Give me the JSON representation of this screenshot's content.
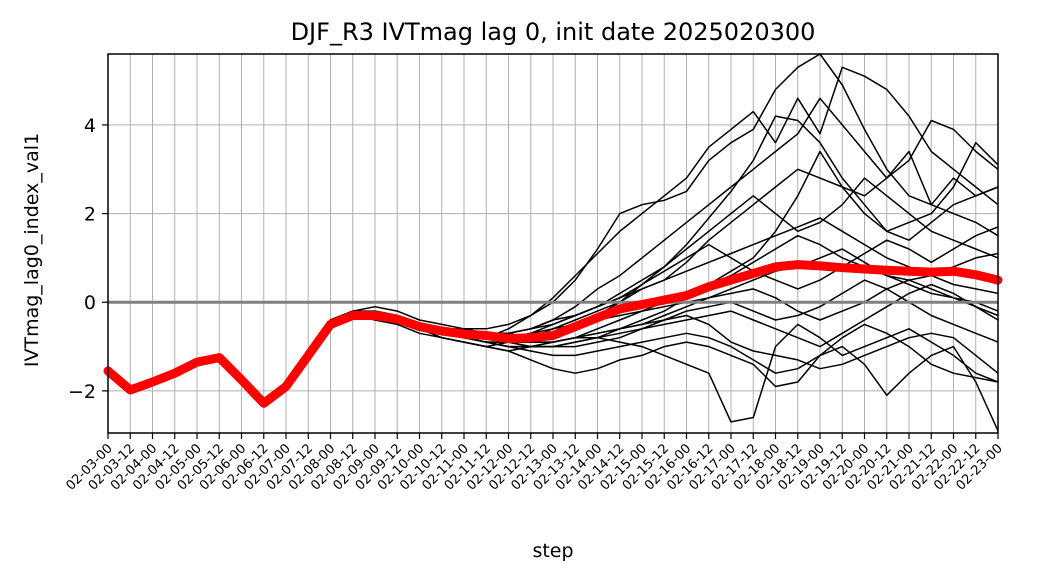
{
  "chart_data": {
    "type": "line",
    "title": "DJF_R3 IVTmag lag 0, init date 2025020300",
    "xlabel": "step",
    "ylabel": "IVTmag_lag0_index_val1",
    "categories": [
      "02-03-00",
      "02-03-12",
      "02-04-00",
      "02-04-12",
      "02-05-00",
      "02-05-12",
      "02-06-00",
      "02-06-12",
      "02-07-00",
      "02-07-12",
      "02-08-00",
      "02-08-12",
      "02-09-00",
      "02-09-12",
      "02-10-00",
      "02-10-12",
      "02-11-00",
      "02-11-12",
      "02-12-00",
      "02-12-12",
      "02-13-00",
      "02-13-12",
      "02-14-00",
      "02-14-12",
      "02-15-00",
      "02-15-12",
      "02-16-00",
      "02-16-12",
      "02-17-00",
      "02-17-12",
      "02-18-00",
      "02-18-12",
      "02-19-00",
      "02-19-12",
      "02-20-00",
      "02-20-12",
      "02-21-00",
      "02-21-12",
      "02-22-00",
      "02-22-12",
      "02-23-00"
    ],
    "yticks": [
      -2,
      0,
      2,
      4
    ],
    "ylim": [
      -2.95,
      5.6
    ],
    "grid": true,
    "reference_line": {
      "y": 0,
      "color": "#808080"
    },
    "colors": {
      "members": "#000000",
      "mean": "#ff0000",
      "grid": "#b0b0b0"
    },
    "series": [
      {
        "role": "ensemble-mean",
        "values": [
          -1.55,
          -1.98,
          -1.8,
          -1.6,
          -1.35,
          -1.25,
          -1.75,
          -2.28,
          -1.9,
          -1.2,
          -0.5,
          -0.3,
          -0.3,
          -0.38,
          -0.55,
          -0.65,
          -0.72,
          -0.75,
          -0.82,
          -0.8,
          -0.75,
          -0.55,
          -0.35,
          -0.15,
          -0.05,
          0.05,
          0.15,
          0.35,
          0.5,
          0.65,
          0.8,
          0.85,
          0.82,
          0.78,
          0.75,
          0.72,
          0.7,
          0.68,
          0.7,
          0.62,
          0.5
        ]
      },
      {
        "role": "member",
        "values": [
          -1.55,
          -1.95,
          -1.82,
          -1.58,
          -1.32,
          -1.2,
          -1.7,
          -2.3,
          -1.9,
          -1.1,
          -0.4,
          -0.3,
          -0.2,
          -0.3,
          -0.5,
          -0.6,
          -0.6,
          -0.7,
          -0.7,
          -0.6,
          -0.4,
          -0.1,
          0.3,
          0.6,
          1.0,
          1.4,
          1.8,
          2.2,
          2.6,
          3.0,
          3.4,
          3.8,
          4.6,
          4.0,
          3.4,
          2.8,
          3.4,
          2.2,
          2.8,
          2.4,
          2.6
        ]
      },
      {
        "role": "member",
        "values": [
          -1.55,
          -1.95,
          -1.82,
          -1.58,
          -1.32,
          -1.2,
          -1.7,
          -2.3,
          -1.9,
          -1.1,
          -0.4,
          -0.2,
          -0.1,
          -0.2,
          -0.4,
          -0.5,
          -0.6,
          -0.6,
          -0.5,
          -0.3,
          0.0,
          0.5,
          1.2,
          2.0,
          2.2,
          2.3,
          2.5,
          3.2,
          3.6,
          3.9,
          4.8,
          5.3,
          5.6,
          4.9,
          3.9,
          3.0,
          2.4,
          2.2,
          2.0,
          1.8,
          1.5
        ]
      },
      {
        "role": "member",
        "values": [
          -1.55,
          -1.95,
          -1.82,
          -1.58,
          -1.32,
          -1.2,
          -1.7,
          -2.3,
          -1.9,
          -1.1,
          -0.4,
          -0.3,
          -0.3,
          -0.4,
          -0.6,
          -0.7,
          -0.8,
          -0.8,
          -0.6,
          -0.3,
          0.1,
          0.6,
          1.1,
          1.6,
          2.0,
          2.4,
          2.8,
          3.5,
          3.9,
          4.3,
          3.6,
          4.6,
          3.8,
          5.3,
          5.1,
          4.8,
          4.2,
          3.4,
          3.0,
          2.6,
          2.2
        ]
      },
      {
        "role": "member",
        "values": [
          -1.55,
          -1.95,
          -1.82,
          -1.58,
          -1.32,
          -1.2,
          -1.7,
          -2.3,
          -1.9,
          -1.1,
          -0.4,
          -0.3,
          -0.4,
          -0.5,
          -0.7,
          -0.8,
          -0.9,
          -1.0,
          -0.9,
          -0.8,
          -0.6,
          -0.4,
          -0.2,
          0.0,
          0.3,
          0.5,
          0.9,
          1.4,
          1.8,
          2.2,
          2.6,
          3.0,
          2.8,
          2.6,
          2.4,
          2.8,
          3.2,
          4.1,
          3.9,
          3.4,
          3.0
        ]
      },
      {
        "role": "member",
        "values": [
          -1.55,
          -1.95,
          -1.82,
          -1.58,
          -1.32,
          -1.2,
          -1.7,
          -2.3,
          -1.9,
          -1.1,
          -0.4,
          -0.2,
          -0.2,
          -0.3,
          -0.5,
          -0.6,
          -0.6,
          -0.7,
          -0.7,
          -0.8,
          -0.7,
          -0.5,
          -0.3,
          0.0,
          0.4,
          0.8,
          1.3,
          1.9,
          2.5,
          3.2,
          4.2,
          4.1,
          3.6,
          2.8,
          2.2,
          1.6,
          1.8,
          2.0,
          2.6,
          3.6,
          3.1
        ]
      },
      {
        "role": "member",
        "values": [
          -1.55,
          -1.95,
          -1.82,
          -1.58,
          -1.32,
          -1.2,
          -1.7,
          -2.3,
          -1.9,
          -1.1,
          -0.4,
          -0.3,
          -0.3,
          -0.4,
          -0.6,
          -0.7,
          -0.8,
          -0.9,
          -1.0,
          -1.0,
          -1.0,
          -0.9,
          -0.8,
          -0.6,
          -0.4,
          -0.2,
          0.1,
          0.4,
          0.7,
          1.0,
          1.6,
          2.4,
          3.4,
          2.6,
          2.0,
          1.6,
          1.4,
          1.8,
          2.2,
          2.4,
          2.6
        ]
      },
      {
        "role": "member",
        "values": [
          -1.55,
          -1.95,
          -1.82,
          -1.58,
          -1.32,
          -1.2,
          -1.7,
          -2.3,
          -1.9,
          -1.1,
          -0.4,
          -0.3,
          -0.3,
          -0.4,
          -0.5,
          -0.6,
          -0.7,
          -0.7,
          -0.7,
          -0.6,
          -0.4,
          -0.3,
          -0.1,
          0.2,
          0.5,
          0.8,
          1.2,
          1.6,
          2.0,
          2.4,
          2.0,
          1.6,
          1.8,
          2.2,
          2.8,
          2.4,
          2.0,
          1.6,
          1.4,
          1.2,
          1.0
        ]
      },
      {
        "role": "member",
        "values": [
          -1.55,
          -1.95,
          -1.82,
          -1.58,
          -1.32,
          -1.2,
          -1.7,
          -2.3,
          -1.9,
          -1.1,
          -0.4,
          -0.3,
          -0.3,
          -0.4,
          -0.6,
          -0.7,
          -0.8,
          -0.8,
          -0.9,
          -0.9,
          -0.9,
          -0.8,
          -0.7,
          -0.6,
          -0.5,
          -0.4,
          -0.3,
          -0.5,
          -0.9,
          -1.1,
          -1.2,
          -1.3,
          -1.5,
          -1.4,
          -1.2,
          -1.0,
          -0.8,
          -0.7,
          -0.8,
          -1.2,
          -1.6
        ]
      },
      {
        "role": "member",
        "values": [
          -1.55,
          -1.95,
          -1.82,
          -1.58,
          -1.32,
          -1.2,
          -1.7,
          -2.3,
          -1.9,
          -1.1,
          -0.4,
          -0.3,
          -0.3,
          -0.4,
          -0.6,
          -0.8,
          -0.9,
          -1.0,
          -1.1,
          -1.0,
          -0.9,
          -0.8,
          -0.8,
          -0.9,
          -1.0,
          -1.2,
          -1.4,
          -1.6,
          -2.7,
          -2.6,
          -1.0,
          -0.5,
          -0.8,
          -1.2,
          -1.0,
          -0.8,
          -0.6,
          -0.9,
          -1.2,
          -1.6,
          -1.8
        ]
      },
      {
        "role": "member",
        "values": [
          -1.55,
          -1.95,
          -1.82,
          -1.58,
          -1.32,
          -1.2,
          -1.7,
          -2.3,
          -1.9,
          -1.1,
          -0.4,
          -0.3,
          -0.3,
          -0.4,
          -0.5,
          -0.7,
          -0.8,
          -0.9,
          -1.0,
          -1.1,
          -1.2,
          -1.2,
          -1.1,
          -1.0,
          -0.9,
          -0.8,
          -0.7,
          -0.8,
          -1.0,
          -1.3,
          -1.6,
          -1.5,
          -1.2,
          -1.0,
          -1.4,
          -2.1,
          -1.6,
          -1.2,
          -1.0,
          -1.8,
          -2.9
        ]
      },
      {
        "role": "member",
        "values": [
          -1.55,
          -1.95,
          -1.82,
          -1.58,
          -1.32,
          -1.2,
          -1.7,
          -2.3,
          -1.9,
          -1.1,
          -0.4,
          -0.3,
          -0.3,
          -0.4,
          -0.6,
          -0.8,
          -0.9,
          -1.0,
          -1.1,
          -1.3,
          -1.5,
          -1.6,
          -1.5,
          -1.3,
          -1.2,
          -1.0,
          -0.9,
          -1.0,
          -1.2,
          -1.4,
          -1.9,
          -1.8,
          -1.2,
          -0.8,
          -0.5,
          -0.7,
          -1.0,
          -1.4,
          -1.6,
          -1.7,
          -1.8
        ]
      },
      {
        "role": "member",
        "values": [
          -1.55,
          -1.95,
          -1.82,
          -1.58,
          -1.32,
          -1.2,
          -1.7,
          -2.3,
          -1.9,
          -1.1,
          -0.4,
          -0.3,
          -0.3,
          -0.4,
          -0.6,
          -0.7,
          -0.8,
          -0.8,
          -0.9,
          -0.9,
          -0.9,
          -0.8,
          -0.7,
          -0.6,
          -0.5,
          -0.3,
          -0.1,
          0.1,
          0.3,
          0.5,
          0.7,
          0.8,
          1.0,
          1.2,
          0.9,
          0.6,
          0.4,
          0.2,
          0.1,
          0.0,
          -0.2
        ]
      },
      {
        "role": "member",
        "values": [
          -1.55,
          -1.95,
          -1.82,
          -1.58,
          -1.32,
          -1.2,
          -1.7,
          -2.3,
          -1.9,
          -1.1,
          -0.4,
          -0.3,
          -0.3,
          -0.4,
          -0.6,
          -0.7,
          -0.8,
          -0.9,
          -0.9,
          -1.0,
          -0.9,
          -0.8,
          -0.6,
          -0.4,
          -0.2,
          0.0,
          0.2,
          0.4,
          0.6,
          0.9,
          1.2,
          1.5,
          1.3,
          1.0,
          0.8,
          0.6,
          0.5,
          0.6,
          0.8,
          1.0,
          1.1
        ]
      },
      {
        "role": "member",
        "values": [
          -1.55,
          -1.95,
          -1.82,
          -1.58,
          -1.32,
          -1.2,
          -1.7,
          -2.3,
          -1.9,
          -1.1,
          -0.4,
          -0.3,
          -0.3,
          -0.4,
          -0.6,
          -0.7,
          -0.7,
          -0.8,
          -0.8,
          -0.7,
          -0.6,
          -0.5,
          -0.4,
          -0.3,
          -0.2,
          -0.1,
          0.0,
          0.1,
          0.2,
          0.3,
          0.1,
          -0.2,
          -0.4,
          -0.2,
          0.0,
          0.3,
          0.5,
          0.3,
          0.1,
          -0.1,
          -0.3
        ]
      },
      {
        "role": "member",
        "values": [
          -1.55,
          -1.95,
          -1.82,
          -1.58,
          -1.32,
          -1.2,
          -1.7,
          -2.3,
          -1.9,
          -1.1,
          -0.4,
          -0.3,
          -0.3,
          -0.4,
          -0.6,
          -0.7,
          -0.8,
          -0.9,
          -1.0,
          -1.0,
          -1.0,
          -0.9,
          -0.8,
          -0.7,
          -0.6,
          -0.5,
          -0.4,
          -0.3,
          -0.2,
          -0.4,
          -0.6,
          -0.8,
          -1.0,
          -0.7,
          -0.4,
          -0.1,
          0.2,
          0.4,
          0.2,
          -0.1,
          -0.4
        ]
      },
      {
        "role": "member",
        "values": [
          -1.55,
          -1.95,
          -1.82,
          -1.58,
          -1.32,
          -1.2,
          -1.7,
          -2.3,
          -1.9,
          -1.1,
          -0.4,
          -0.3,
          -0.3,
          -0.4,
          -0.6,
          -0.7,
          -0.8,
          -0.8,
          -0.8,
          -0.7,
          -0.5,
          -0.3,
          -0.1,
          0.1,
          0.4,
          0.7,
          1.0,
          1.3,
          1.0,
          0.7,
          0.5,
          0.3,
          0.5,
          0.8,
          1.1,
          1.4,
          1.2,
          0.9,
          1.2,
          1.5,
          1.7
        ]
      },
      {
        "role": "member",
        "values": [
          -1.55,
          -1.95,
          -1.82,
          -1.58,
          -1.32,
          -1.2,
          -1.7,
          -2.3,
          -1.9,
          -1.1,
          -0.4,
          -0.3,
          -0.3,
          -0.4,
          -0.6,
          -0.7,
          -0.8,
          -0.9,
          -0.9,
          -1.0,
          -1.0,
          -1.0,
          -0.9,
          -0.8,
          -0.6,
          -0.4,
          -0.2,
          -0.1,
          0.0,
          -0.2,
          -0.4,
          -0.3,
          -0.1,
          0.2,
          0.5,
          0.3,
          0.0,
          -0.3,
          -0.5,
          -0.7,
          -0.9
        ]
      },
      {
        "role": "member",
        "values": [
          -1.55,
          -1.95,
          -1.82,
          -1.58,
          -1.32,
          -1.2,
          -1.7,
          -2.3,
          -1.9,
          -1.1,
          -0.4,
          -0.3,
          -0.3,
          -0.4,
          -0.6,
          -0.7,
          -0.7,
          -0.7,
          -0.7,
          -0.6,
          -0.5,
          -0.3,
          -0.1,
          0.1,
          0.3,
          0.5,
          0.7,
          0.9,
          1.1,
          1.3,
          1.5,
          1.7,
          1.9,
          1.6,
          1.3,
          1.0,
          0.8,
          0.6,
          0.4,
          0.3,
          0.2
        ]
      }
    ]
  }
}
